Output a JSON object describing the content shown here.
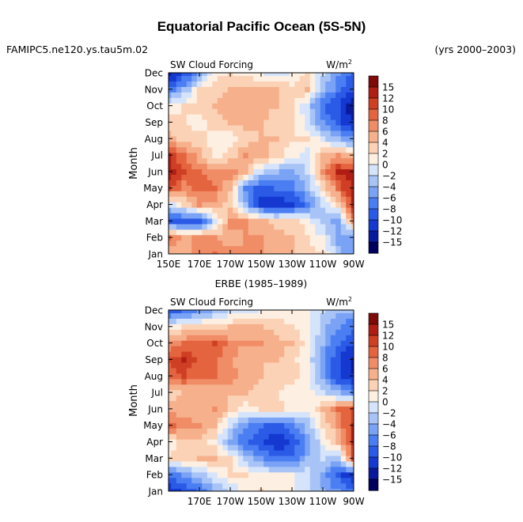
{
  "figure": {
    "title": "Equatorial Pacific Ocean (5S-5N)",
    "case_name": "FAMIPC5.ne120.ys.tau5m.02",
    "years": "(yrs 2000–2003)",
    "obs_title": "ERBE (1985–1989)"
  },
  "colors": {
    "levels": [
      "#00005c",
      "#0a1a9c",
      "#1438d0",
      "#2a5ae6",
      "#4a7ef2",
      "#7aa2f5",
      "#a8c4f7",
      "#d6e4fb",
      "#fdf0e2",
      "#fbd2b6",
      "#f6b08c",
      "#f08c66",
      "#e4643f",
      "#cf3f24",
      "#b01d14",
      "#7e0a0a"
    ]
  },
  "chart_data": [
    {
      "type": "heatmap",
      "variable": "SW Cloud Forcing",
      "units": "W/m",
      "units_exp": "2",
      "xlabel": "",
      "ylabel": "Month",
      "xlim": [
        150,
        270
      ],
      "x_ticks": [
        150,
        170,
        190,
        210,
        230,
        250,
        270
      ],
      "x_tick_labels": [
        "150E",
        "170E",
        "170W",
        "150W",
        "130W",
        "110W",
        "90W"
      ],
      "y_tick_labels": [
        "Jan",
        "Feb",
        "Mar",
        "Apr",
        "May",
        "Jun",
        "Jul",
        "Aug",
        "Sep",
        "Oct",
        "Nov",
        "Dec"
      ],
      "contour_levels": [
        -15,
        -12,
        -10,
        -8,
        -6,
        -4,
        -2,
        0,
        2,
        4,
        6,
        8,
        10,
        12,
        15
      ],
      "colorbar_labels": [
        "15",
        "12",
        "10",
        "8",
        "6",
        "4",
        "2",
        "0",
        "−2",
        "−4",
        "−6",
        "−8",
        "−10",
        "−12",
        "−15"
      ],
      "x_cols": [
        150,
        160,
        170,
        180,
        190,
        200,
        210,
        220,
        230,
        240,
        250,
        260,
        270
      ],
      "values": [
        [
          4,
          5,
          7,
          8,
          7,
          6,
          6,
          5,
          4,
          3,
          2,
          -3,
          -6
        ],
        [
          9,
          5,
          7,
          6,
          4,
          6,
          6,
          5,
          4,
          2,
          0,
          -5,
          -6
        ],
        [
          -9,
          -10,
          -10,
          -2,
          7,
          6,
          5,
          3,
          3,
          1,
          -3,
          -5,
          6
        ],
        [
          -2,
          2,
          6,
          5,
          3,
          -4,
          -11,
          -12,
          -11,
          -7,
          -2,
          2,
          12
        ],
        [
          10,
          7,
          9,
          8,
          4,
          -7,
          -9,
          -8,
          -7,
          -4,
          2,
          8,
          14
        ],
        [
          13,
          10,
          8,
          7,
          7,
          4,
          -2,
          -4,
          -5,
          -2,
          6,
          12,
          12
        ],
        [
          12,
          8,
          5,
          1,
          3,
          6,
          5,
          3,
          1,
          -1,
          4,
          6,
          4
        ],
        [
          5,
          3,
          3,
          1,
          1,
          3,
          4,
          4,
          2,
          2,
          -1,
          -4,
          -6
        ],
        [
          3,
          2,
          1,
          3,
          4,
          5,
          4,
          3,
          3,
          -1,
          -6,
          -9,
          -12
        ],
        [
          1,
          2,
          3,
          4,
          5,
          5,
          5,
          4,
          3,
          -2,
          -8,
          -10,
          -14
        ],
        [
          -8,
          -4,
          2,
          3,
          4,
          5,
          5,
          4,
          3,
          4,
          -4,
          -7,
          -10
        ],
        [
          -13,
          -10,
          -5,
          1,
          2,
          1,
          0,
          -1,
          0,
          2,
          -2,
          -6,
          -9
        ]
      ]
    },
    {
      "type": "heatmap",
      "variable": "SW Cloud Forcing",
      "units": "W/m",
      "units_exp": "2",
      "xlabel": "",
      "ylabel": "Month",
      "xlim": [
        150,
        270
      ],
      "x_ticks": [
        150,
        170,
        190,
        210,
        230,
        250,
        270
      ],
      "x_tick_labels": [
        "",
        "170E",
        "170W",
        "150W",
        "130W",
        "110W",
        "90W"
      ],
      "y_tick_labels": [
        "Jan",
        "Feb",
        "Mar",
        "Apr",
        "May",
        "Jun",
        "Jul",
        "Aug",
        "Sep",
        "Oct",
        "Nov",
        "Dec"
      ],
      "contour_levels": [
        -15,
        -12,
        -10,
        -8,
        -6,
        -4,
        -2,
        0,
        2,
        4,
        6,
        8,
        10,
        12,
        15
      ],
      "colorbar_labels": [
        "15",
        "12",
        "10",
        "8",
        "6",
        "4",
        "2",
        "0",
        "−2",
        "−4",
        "−6",
        "−8",
        "−10",
        "−12",
        "−15"
      ],
      "x_cols": [
        150,
        160,
        170,
        180,
        190,
        200,
        210,
        220,
        230,
        240,
        250,
        260,
        270
      ],
      "values": [
        [
          -12,
          -10,
          -8,
          -4,
          -2,
          1,
          2,
          1,
          0,
          -2,
          -4,
          -6,
          -8
        ],
        [
          -8,
          -6,
          -3,
          -1,
          2,
          2,
          1,
          0,
          0,
          -1,
          -5,
          -9,
          -12
        ],
        [
          2,
          3,
          4,
          4,
          2,
          -3,
          -6,
          -8,
          -8,
          -4,
          -1,
          -4,
          10
        ],
        [
          1,
          3,
          3,
          1,
          -5,
          -8,
          -10,
          -12,
          -10,
          -6,
          0,
          4,
          12
        ],
        [
          9,
          7,
          6,
          4,
          -2,
          -6,
          -8,
          -9,
          -7,
          -3,
          2,
          6,
          12
        ],
        [
          5,
          5,
          5,
          6,
          3,
          1,
          2,
          3,
          1,
          0,
          4,
          8,
          10
        ],
        [
          3,
          4,
          4,
          5,
          4,
          4,
          3,
          2,
          1,
          1,
          -1,
          -4,
          -7
        ],
        [
          8,
          10,
          8,
          8,
          7,
          5,
          4,
          3,
          3,
          1,
          -5,
          -10,
          -12
        ],
        [
          10,
          12,
          9,
          9,
          6,
          5,
          4,
          4,
          3,
          0,
          -6,
          -10,
          -13
        ],
        [
          6,
          8,
          9,
          10,
          7,
          6,
          6,
          5,
          4,
          1,
          -4,
          -8,
          -10
        ],
        [
          1,
          2,
          3,
          3,
          4,
          4,
          4,
          3,
          2,
          1,
          -3,
          -6,
          -8
        ],
        [
          -10,
          -8,
          -6,
          -4,
          -2,
          -1,
          0,
          1,
          1,
          0,
          -2,
          -4,
          -4
        ]
      ]
    }
  ]
}
